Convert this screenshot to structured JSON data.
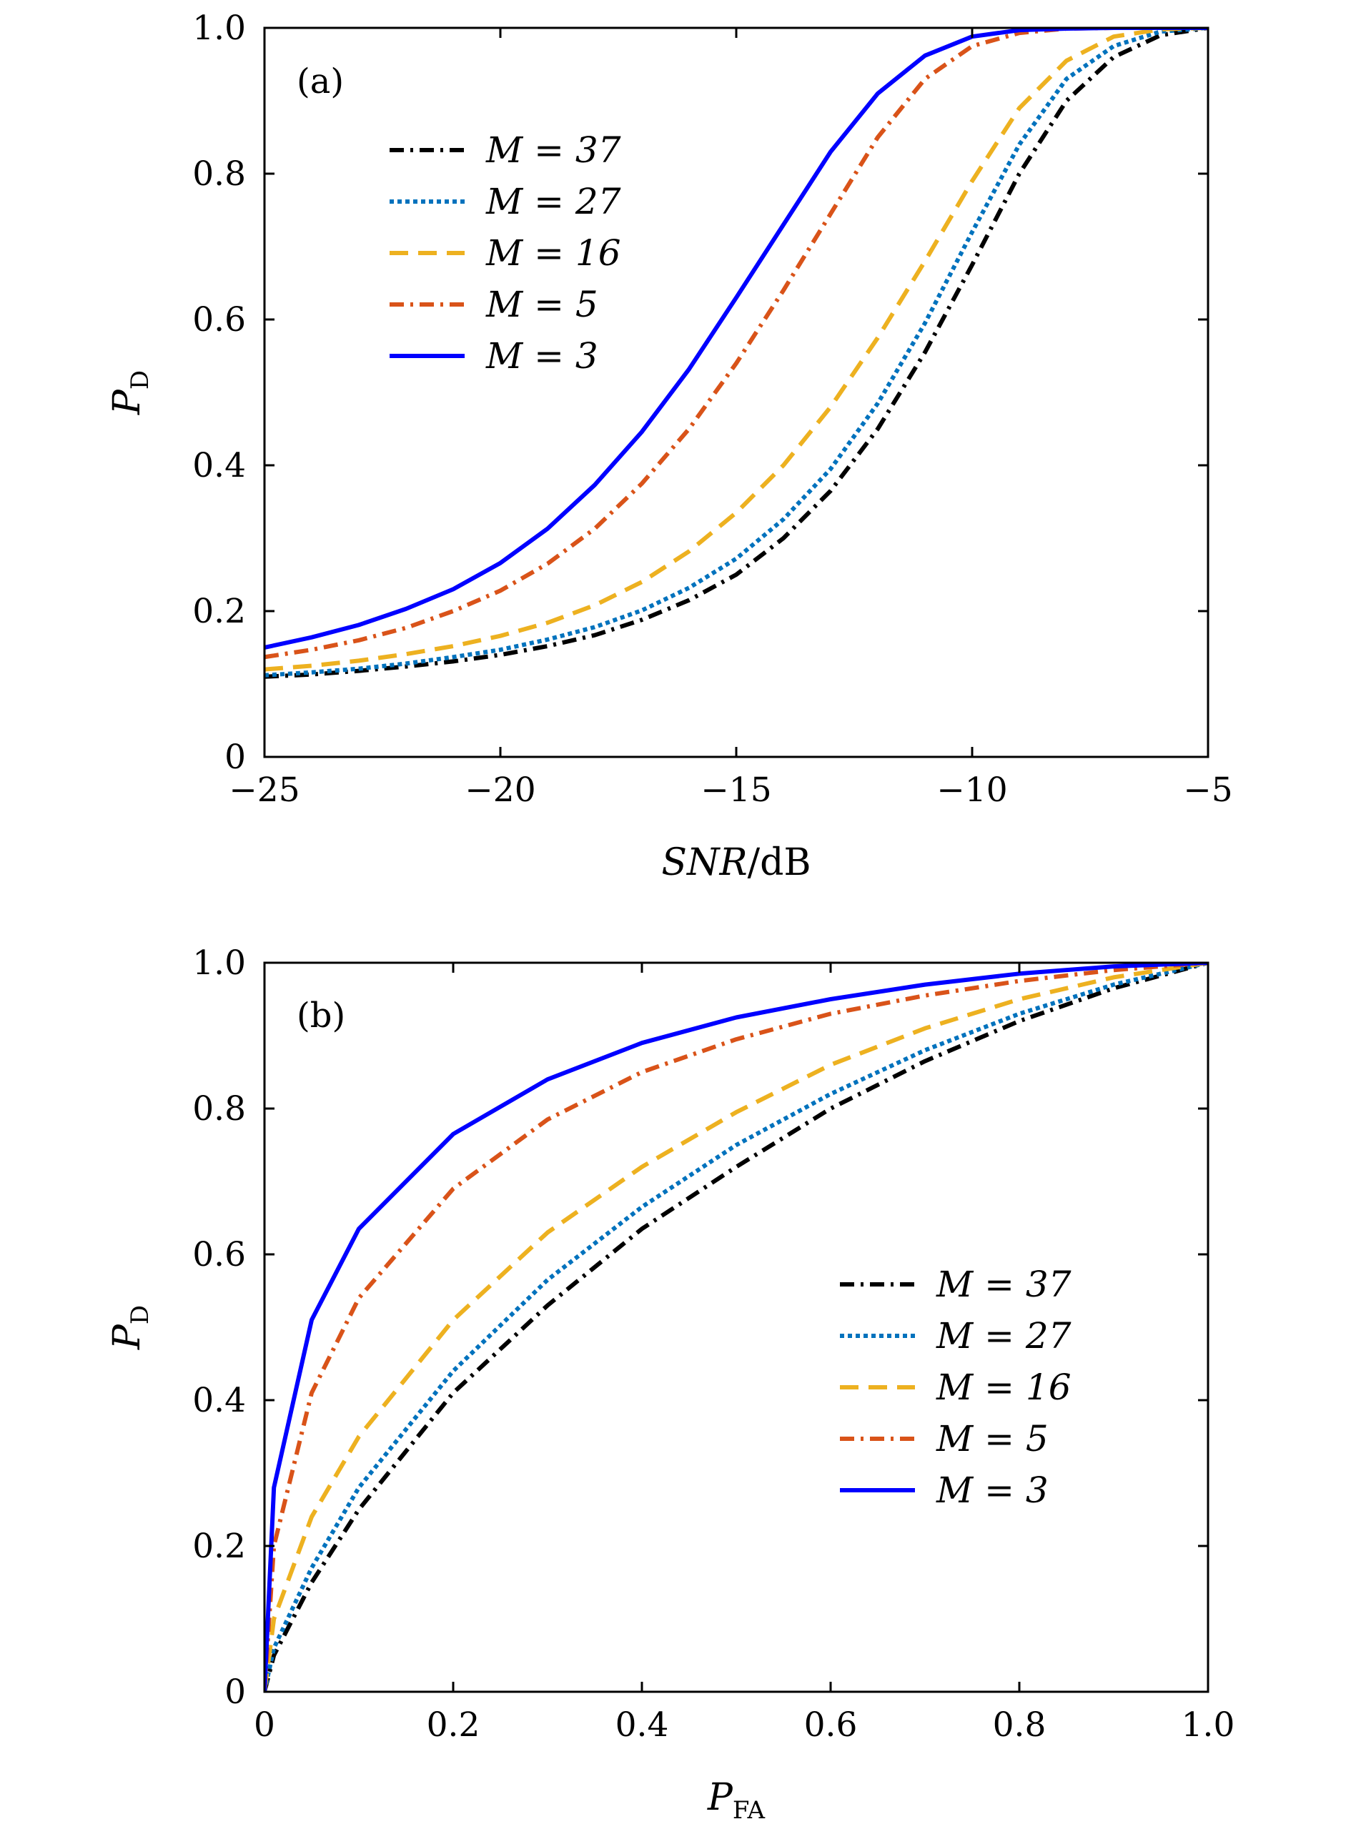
{
  "chart_data": [
    {
      "type": "line",
      "panel_label": "(a)",
      "title": "",
      "xlabel": "SNR/dB",
      "xlabel_parts": {
        "main": "SNR",
        "rest": "/dB"
      },
      "ylabel": "P_D",
      "ylabel_parts": {
        "main": "P",
        "sub": "D"
      },
      "xlim": [
        -25,
        -5
      ],
      "ylim": [
        0,
        1
      ],
      "xticks": [
        -25,
        -20,
        -15,
        -10,
        -5
      ],
      "xtick_labels": [
        "−25",
        "−20",
        "−15",
        "−10",
        "−5"
      ],
      "yticks": [
        0,
        0.2,
        0.4,
        0.6,
        0.8,
        1.0
      ],
      "ytick_labels": [
        "0",
        "0.2",
        "0.4",
        "0.6",
        "0.8",
        "1.0"
      ],
      "grid": false,
      "legend_position": "upper-left",
      "x": [
        -25,
        -24,
        -23,
        -22,
        -21,
        -20,
        -19,
        -18,
        -17,
        -16,
        -15,
        -14,
        -13,
        -12,
        -11,
        -10,
        -9,
        -8,
        -7,
        -6,
        -5
      ],
      "series": [
        {
          "name": "M = 37",
          "legend": "M = 37",
          "color": "#000000",
          "style": "dashdot",
          "values": [
            0.11,
            0.113,
            0.118,
            0.124,
            0.131,
            0.14,
            0.152,
            0.167,
            0.188,
            0.215,
            0.25,
            0.3,
            0.365,
            0.45,
            0.555,
            0.675,
            0.8,
            0.9,
            0.96,
            0.99,
            1.0
          ]
        },
        {
          "name": "M = 27",
          "legend": "M = 27",
          "color": "#0072BD",
          "style": "dotted",
          "values": [
            0.112,
            0.116,
            0.121,
            0.128,
            0.137,
            0.147,
            0.161,
            0.178,
            0.201,
            0.232,
            0.272,
            0.326,
            0.395,
            0.485,
            0.595,
            0.72,
            0.84,
            0.93,
            0.975,
            0.995,
            1.0
          ]
        },
        {
          "name": "M = 16",
          "legend": "M = 16",
          "color": "#EDB120",
          "style": "dashed",
          "values": [
            0.12,
            0.125,
            0.132,
            0.141,
            0.152,
            0.166,
            0.184,
            0.208,
            0.24,
            0.282,
            0.335,
            0.4,
            0.48,
            0.575,
            0.68,
            0.79,
            0.89,
            0.955,
            0.988,
            0.998,
            1.0
          ]
        },
        {
          "name": "M = 5",
          "legend": "M = 5",
          "color": "#D95319",
          "style": "dashdot",
          "values": [
            0.137,
            0.147,
            0.16,
            0.177,
            0.2,
            0.228,
            0.265,
            0.313,
            0.375,
            0.45,
            0.54,
            0.64,
            0.745,
            0.85,
            0.93,
            0.975,
            0.993,
            0.999,
            1.0,
            1.0,
            1.0
          ]
        },
        {
          "name": "M = 3",
          "legend": "M = 3",
          "color": "#0000FF",
          "style": "solid",
          "values": [
            0.15,
            0.164,
            0.181,
            0.203,
            0.23,
            0.266,
            0.313,
            0.373,
            0.446,
            0.532,
            0.63,
            0.73,
            0.83,
            0.91,
            0.962,
            0.988,
            0.997,
            0.999,
            1.0,
            1.0,
            1.0
          ]
        }
      ]
    },
    {
      "type": "line",
      "panel_label": "(b)",
      "title": "",
      "xlabel": "P_FA",
      "xlabel_parts": {
        "main": "P",
        "sub": "FA"
      },
      "ylabel": "P_D",
      "ylabel_parts": {
        "main": "P",
        "sub": "D"
      },
      "xlim": [
        0,
        1
      ],
      "ylim": [
        0,
        1
      ],
      "xticks": [
        0,
        0.2,
        0.4,
        0.6,
        0.8,
        1.0
      ],
      "xtick_labels": [
        "0",
        "0.2",
        "0.4",
        "0.6",
        "0.8",
        "1.0"
      ],
      "yticks": [
        0,
        0.2,
        0.4,
        0.6,
        0.8,
        1.0
      ],
      "ytick_labels": [
        "0",
        "0.2",
        "0.4",
        "0.6",
        "0.8",
        "1.0"
      ],
      "grid": false,
      "legend_position": "lower-right",
      "x": [
        0,
        0.01,
        0.05,
        0.1,
        0.2,
        0.3,
        0.4,
        0.5,
        0.6,
        0.7,
        0.8,
        0.9,
        1.0
      ],
      "series": [
        {
          "name": "M = 37",
          "legend": "M = 37",
          "color": "#000000",
          "style": "dashdot",
          "values": [
            0,
            0.05,
            0.15,
            0.25,
            0.41,
            0.53,
            0.635,
            0.72,
            0.8,
            0.865,
            0.92,
            0.965,
            1.0
          ]
        },
        {
          "name": "M = 27",
          "legend": "M = 27",
          "color": "#0072BD",
          "style": "dotted",
          "values": [
            0,
            0.06,
            0.17,
            0.28,
            0.44,
            0.565,
            0.665,
            0.75,
            0.82,
            0.88,
            0.93,
            0.97,
            1.0
          ]
        },
        {
          "name": "M = 16",
          "legend": "M = 16",
          "color": "#EDB120",
          "style": "dashed",
          "values": [
            0,
            0.1,
            0.24,
            0.35,
            0.51,
            0.63,
            0.72,
            0.795,
            0.86,
            0.91,
            0.95,
            0.98,
            1.0
          ]
        },
        {
          "name": "M = 5",
          "legend": "M = 5",
          "color": "#D95319",
          "style": "dashdot",
          "values": [
            0,
            0.2,
            0.41,
            0.54,
            0.69,
            0.785,
            0.85,
            0.895,
            0.93,
            0.955,
            0.975,
            0.99,
            1.0
          ]
        },
        {
          "name": "M = 3",
          "legend": "M = 3",
          "color": "#0000FF",
          "style": "solid",
          "values": [
            0,
            0.28,
            0.51,
            0.635,
            0.765,
            0.84,
            0.89,
            0.925,
            0.95,
            0.97,
            0.985,
            0.995,
            1.0
          ]
        }
      ]
    }
  ]
}
